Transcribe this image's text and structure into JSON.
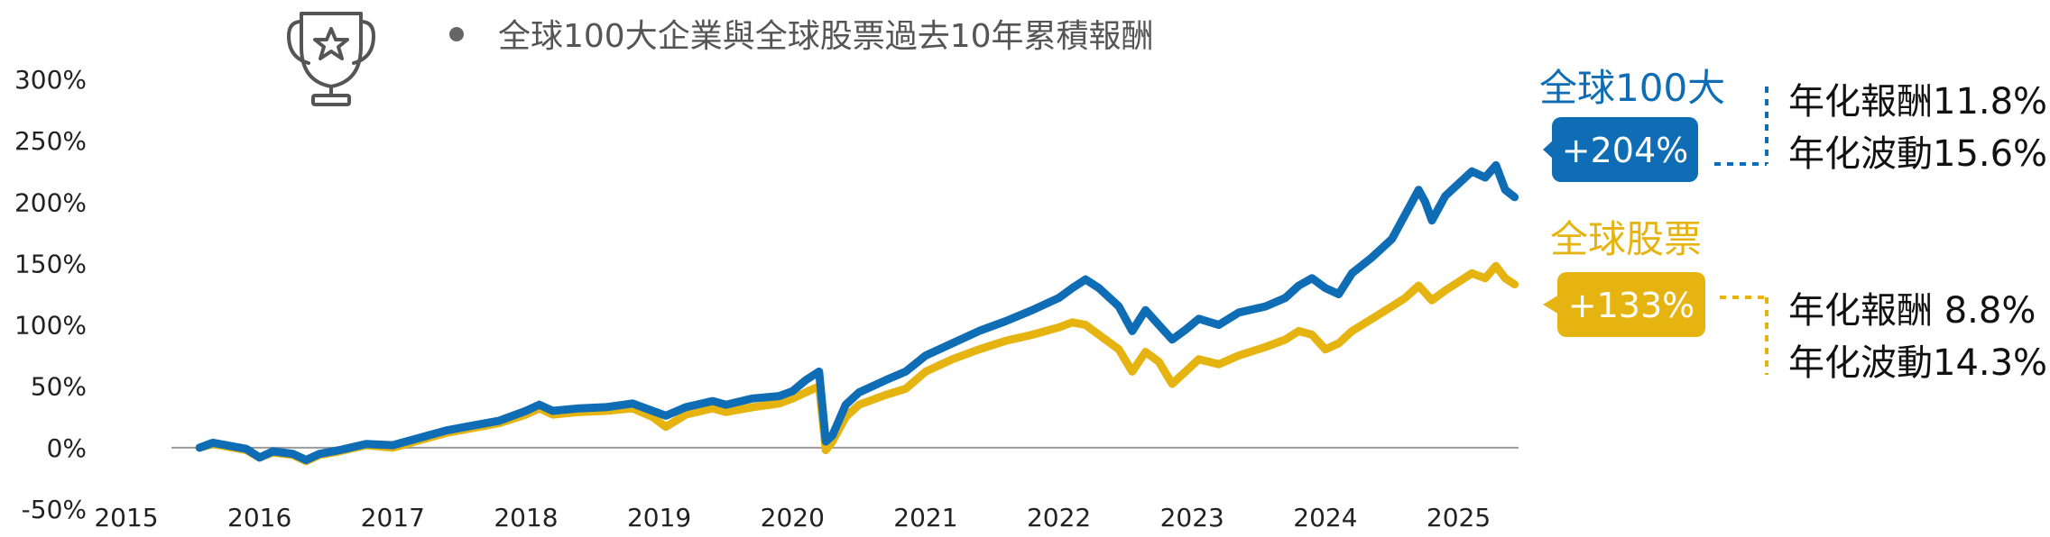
{
  "chart_data": {
    "type": "line",
    "title": "全球100大企業與全球股票過去10年累積報酬",
    "x_ticks": [
      "2015",
      "2016",
      "2017",
      "2018",
      "2019",
      "2020",
      "2021",
      "2022",
      "2023",
      "2024",
      "2025"
    ],
    "y_ticks": [
      "300%",
      "250%",
      "200%",
      "150%",
      "100%",
      "50%",
      "0%",
      "-50%"
    ],
    "ylim": [
      -50,
      300
    ],
    "xlim": [
      2015.0,
      2025.45
    ],
    "grid": false,
    "series": [
      {
        "name": "全球100大",
        "color": "#0f6db5",
        "total_return_label": "+204%",
        "stats": [
          "年化報酬11.8%",
          "年化波動15.6%"
        ],
        "points": [
          [
            2015.55,
            0
          ],
          [
            2015.65,
            4
          ],
          [
            2015.75,
            2
          ],
          [
            2015.9,
            -1
          ],
          [
            2016.0,
            -8
          ],
          [
            2016.1,
            -3
          ],
          [
            2016.25,
            -5
          ],
          [
            2016.35,
            -10
          ],
          [
            2016.45,
            -5
          ],
          [
            2016.6,
            -2
          ],
          [
            2016.8,
            3
          ],
          [
            2017.0,
            2
          ],
          [
            2017.2,
            8
          ],
          [
            2017.4,
            14
          ],
          [
            2017.6,
            18
          ],
          [
            2017.8,
            22
          ],
          [
            2018.0,
            30
          ],
          [
            2018.1,
            35
          ],
          [
            2018.2,
            30
          ],
          [
            2018.4,
            32
          ],
          [
            2018.6,
            33
          ],
          [
            2018.8,
            36
          ],
          [
            2018.95,
            30
          ],
          [
            2019.05,
            26
          ],
          [
            2019.2,
            33
          ],
          [
            2019.4,
            38
          ],
          [
            2019.5,
            35
          ],
          [
            2019.7,
            40
          ],
          [
            2019.9,
            42
          ],
          [
            2020.0,
            46
          ],
          [
            2020.1,
            55
          ],
          [
            2020.2,
            62
          ],
          [
            2020.25,
            5
          ],
          [
            2020.3,
            10
          ],
          [
            2020.4,
            35
          ],
          [
            2020.5,
            45
          ],
          [
            2020.7,
            55
          ],
          [
            2020.85,
            62
          ],
          [
            2021.0,
            75
          ],
          [
            2021.2,
            85
          ],
          [
            2021.4,
            95
          ],
          [
            2021.6,
            103
          ],
          [
            2021.8,
            112
          ],
          [
            2022.0,
            122
          ],
          [
            2022.1,
            130
          ],
          [
            2022.2,
            137
          ],
          [
            2022.3,
            130
          ],
          [
            2022.45,
            115
          ],
          [
            2022.55,
            95
          ],
          [
            2022.65,
            112
          ],
          [
            2022.75,
            100
          ],
          [
            2022.85,
            88
          ],
          [
            2022.95,
            96
          ],
          [
            2023.05,
            105
          ],
          [
            2023.2,
            100
          ],
          [
            2023.35,
            110
          ],
          [
            2023.55,
            115
          ],
          [
            2023.7,
            122
          ],
          [
            2023.8,
            132
          ],
          [
            2023.9,
            138
          ],
          [
            2024.0,
            130
          ],
          [
            2024.1,
            125
          ],
          [
            2024.2,
            142
          ],
          [
            2024.35,
            155
          ],
          [
            2024.5,
            170
          ],
          [
            2024.6,
            190
          ],
          [
            2024.7,
            210
          ],
          [
            2024.75,
            200
          ],
          [
            2024.8,
            185
          ],
          [
            2024.9,
            205
          ],
          [
            2025.0,
            215
          ],
          [
            2025.1,
            225
          ],
          [
            2025.2,
            220
          ],
          [
            2025.28,
            230
          ],
          [
            2025.35,
            210
          ],
          [
            2025.42,
            204
          ]
        ]
      },
      {
        "name": "全球股票",
        "color": "#e6b411",
        "total_return_label": "+133%",
        "stats": [
          "年化報酬  8.8%",
          "年化波動14.3%"
        ],
        "points": [
          [
            2015.55,
            0
          ],
          [
            2015.65,
            3
          ],
          [
            2015.75,
            1
          ],
          [
            2015.9,
            -2
          ],
          [
            2016.0,
            -8
          ],
          [
            2016.1,
            -4
          ],
          [
            2016.25,
            -6
          ],
          [
            2016.35,
            -11
          ],
          [
            2016.45,
            -6
          ],
          [
            2016.6,
            -3
          ],
          [
            2016.8,
            2
          ],
          [
            2017.0,
            0
          ],
          [
            2017.2,
            6
          ],
          [
            2017.4,
            12
          ],
          [
            2017.6,
            16
          ],
          [
            2017.8,
            20
          ],
          [
            2018.0,
            27
          ],
          [
            2018.1,
            32
          ],
          [
            2018.2,
            27
          ],
          [
            2018.4,
            29
          ],
          [
            2018.6,
            30
          ],
          [
            2018.8,
            32
          ],
          [
            2018.95,
            25
          ],
          [
            2019.05,
            17
          ],
          [
            2019.2,
            27
          ],
          [
            2019.4,
            32
          ],
          [
            2019.5,
            29
          ],
          [
            2019.7,
            33
          ],
          [
            2019.9,
            36
          ],
          [
            2020.0,
            40
          ],
          [
            2020.1,
            45
          ],
          [
            2020.2,
            50
          ],
          [
            2020.25,
            -2
          ],
          [
            2020.3,
            5
          ],
          [
            2020.4,
            25
          ],
          [
            2020.5,
            35
          ],
          [
            2020.7,
            43
          ],
          [
            2020.85,
            48
          ],
          [
            2021.0,
            62
          ],
          [
            2021.2,
            72
          ],
          [
            2021.4,
            80
          ],
          [
            2021.6,
            87
          ],
          [
            2021.8,
            92
          ],
          [
            2022.0,
            98
          ],
          [
            2022.1,
            102
          ],
          [
            2022.2,
            100
          ],
          [
            2022.3,
            92
          ],
          [
            2022.45,
            80
          ],
          [
            2022.55,
            62
          ],
          [
            2022.65,
            78
          ],
          [
            2022.75,
            70
          ],
          [
            2022.85,
            52
          ],
          [
            2022.95,
            62
          ],
          [
            2023.05,
            72
          ],
          [
            2023.2,
            68
          ],
          [
            2023.35,
            75
          ],
          [
            2023.55,
            82
          ],
          [
            2023.7,
            88
          ],
          [
            2023.8,
            95
          ],
          [
            2023.9,
            92
          ],
          [
            2024.0,
            80
          ],
          [
            2024.1,
            85
          ],
          [
            2024.2,
            95
          ],
          [
            2024.35,
            105
          ],
          [
            2024.5,
            115
          ],
          [
            2024.6,
            122
          ],
          [
            2024.7,
            132
          ],
          [
            2024.75,
            126
          ],
          [
            2024.8,
            120
          ],
          [
            2024.9,
            128
          ],
          [
            2025.0,
            135
          ],
          [
            2025.1,
            142
          ],
          [
            2025.2,
            138
          ],
          [
            2025.28,
            148
          ],
          [
            2025.35,
            138
          ],
          [
            2025.42,
            133
          ]
        ]
      }
    ]
  }
}
